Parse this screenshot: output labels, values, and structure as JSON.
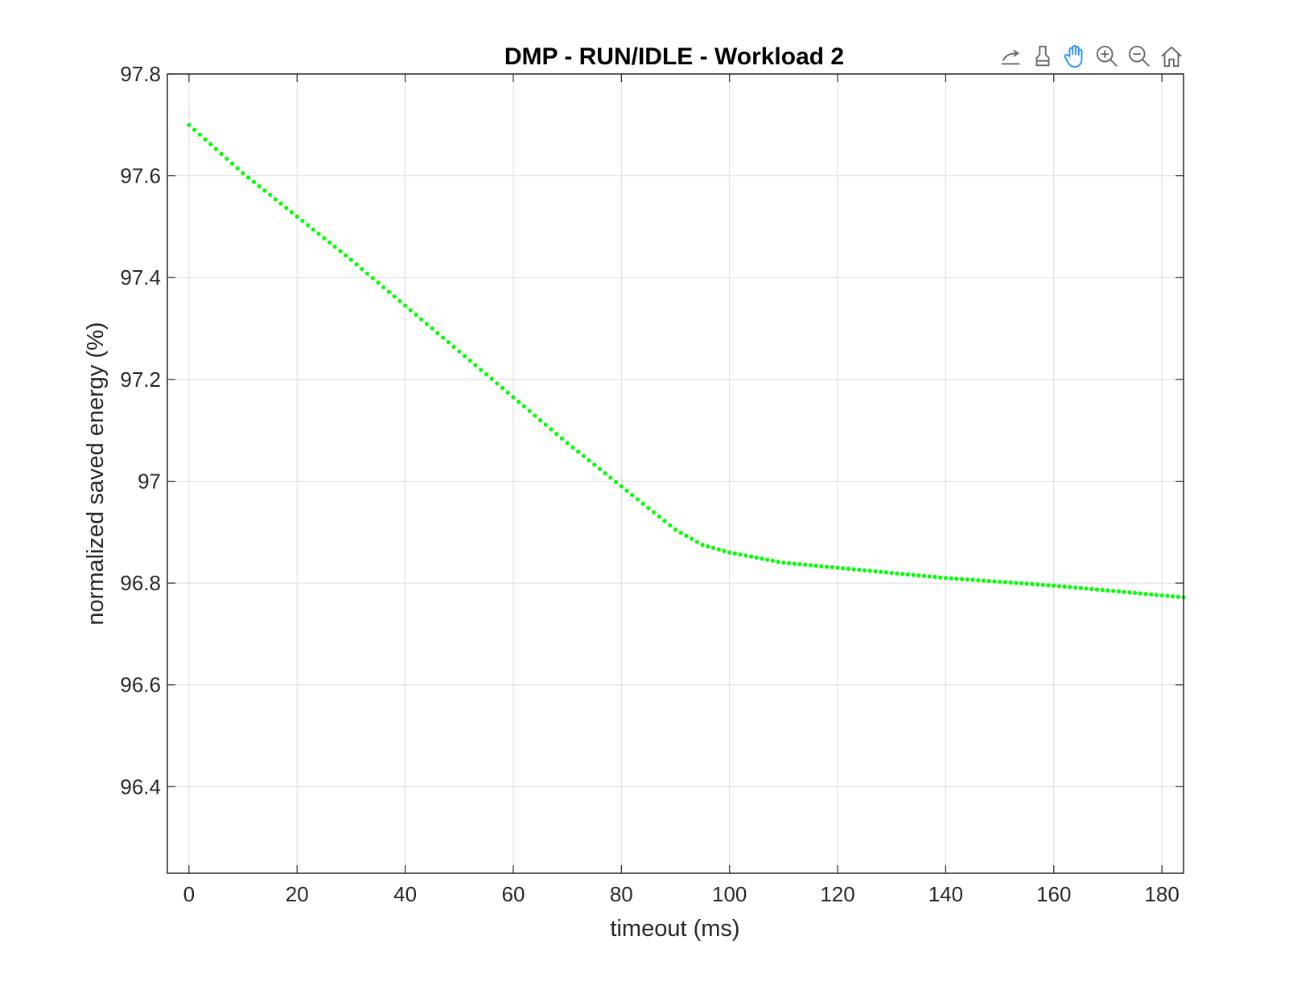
{
  "toolbar": {
    "icons": [
      "annotate-icon",
      "brush-icon",
      "pan-icon",
      "zoom-in-icon",
      "zoom-out-icon",
      "home-icon"
    ],
    "active_tool": "pan-icon",
    "active_color": "#1e90ff",
    "inactive_color": "#666666"
  },
  "chart_data": {
    "type": "scatter",
    "title": "DMP - RUN/IDLE - Workload 2",
    "xlabel": "timeout (ms)",
    "ylabel": "normalized saved energy (%)",
    "xlim": [
      -4,
      184
    ],
    "ylim": [
      96.23,
      97.8
    ],
    "xticks": [
      0,
      20,
      40,
      60,
      80,
      100,
      120,
      140,
      160,
      180
    ],
    "yticks": [
      96.4,
      96.6,
      96.8,
      97,
      97.2,
      97.4,
      97.6,
      97.8
    ],
    "ytick_labels": [
      "96.4",
      "96.6",
      "96.8",
      "97",
      "97.2",
      "97.4",
      "97.6",
      "97.8"
    ],
    "grid": true,
    "marker_color": "#00ff00",
    "series": [
      {
        "x_start": 0,
        "x_end": 184,
        "x_step": 1,
        "knots_x": [
          0,
          10,
          20,
          30,
          40,
          50,
          60,
          70,
          80,
          90,
          95,
          100,
          110,
          120,
          140,
          160,
          184
        ],
        "knots_y": [
          97.7,
          97.605,
          97.52,
          97.435,
          97.345,
          97.255,
          97.165,
          97.075,
          96.99,
          96.905,
          96.875,
          96.86,
          96.84,
          96.83,
          96.81,
          96.795,
          96.772
        ]
      }
    ]
  }
}
